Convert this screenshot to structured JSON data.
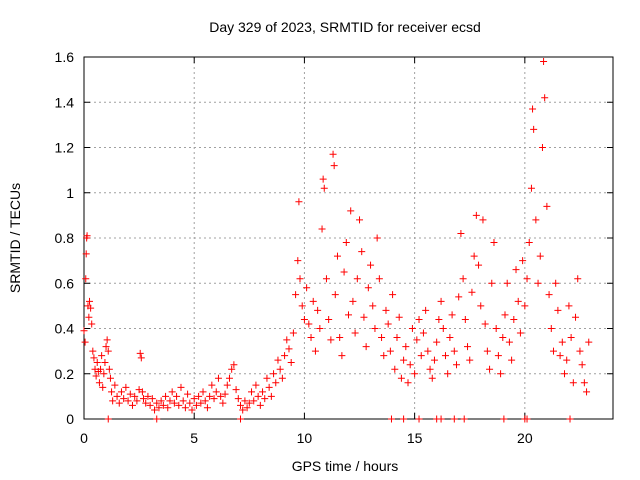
{
  "chart_data": {
    "type": "scatter",
    "title": "Day 329 of 2023, SRMTID for receiver ecsd",
    "xlabel": "GPS time / hours",
    "ylabel": "SRMTID / TECUs",
    "xlim": [
      0,
      24
    ],
    "ylim": [
      0,
      1.6
    ],
    "xticks": [
      "0",
      "5",
      "10",
      "15",
      "20"
    ],
    "yticks": [
      "0",
      "0.2",
      "0.4",
      "0.6",
      "0.8",
      "1",
      "1.2",
      "1.4",
      "1.6"
    ],
    "grid": true,
    "marker": "+",
    "series_color": "#ff0000",
    "series": [
      {
        "name": "SRMTID",
        "points": [
          [
            0.0,
            0.39
          ],
          [
            0.05,
            0.34
          ],
          [
            0.08,
            0.62
          ],
          [
            0.1,
            0.73
          ],
          [
            0.12,
            0.8
          ],
          [
            0.14,
            0.81
          ],
          [
            0.18,
            0.5
          ],
          [
            0.22,
            0.45
          ],
          [
            0.25,
            0.52
          ],
          [
            0.3,
            0.49
          ],
          [
            0.35,
            0.42
          ],
          [
            0.4,
            0.3
          ],
          [
            0.45,
            0.27
          ],
          [
            0.5,
            0.22
          ],
          [
            0.55,
            0.19
          ],
          [
            0.6,
            0.25
          ],
          [
            0.65,
            0.21
          ],
          [
            0.7,
            0.16
          ],
          [
            0.75,
            0.22
          ],
          [
            0.8,
            0.28
          ],
          [
            0.85,
            0.14
          ],
          [
            0.9,
            0.2
          ],
          [
            0.95,
            0.25
          ],
          [
            1.0,
            0.32
          ],
          [
            1.05,
            0.35
          ],
          [
            1.1,
            0.3
          ],
          [
            1.15,
            0.22
          ],
          [
            1.2,
            0.18
          ],
          [
            1.25,
            0.12
          ],
          [
            1.3,
            0.08
          ],
          [
            1.4,
            0.15
          ],
          [
            1.5,
            0.1
          ],
          [
            1.6,
            0.07
          ],
          [
            1.7,
            0.12
          ],
          [
            1.8,
            0.09
          ],
          [
            1.9,
            0.14
          ],
          [
            2.0,
            0.08
          ],
          [
            2.1,
            0.11
          ],
          [
            2.2,
            0.06
          ],
          [
            2.3,
            0.1
          ],
          [
            2.4,
            0.08
          ],
          [
            2.5,
            0.13
          ],
          [
            2.55,
            0.29
          ],
          [
            2.6,
            0.27
          ],
          [
            2.65,
            0.12
          ],
          [
            2.7,
            0.09
          ],
          [
            2.8,
            0.07
          ],
          [
            2.9,
            0.1
          ],
          [
            3.0,
            0.06
          ],
          [
            3.1,
            0.09
          ],
          [
            3.2,
            0.04
          ],
          [
            3.3,
            0.07
          ],
          [
            3.4,
            0.05
          ],
          [
            3.5,
            0.08
          ],
          [
            3.6,
            0.06
          ],
          [
            3.7,
            0.1
          ],
          [
            3.8,
            0.05
          ],
          [
            3.9,
            0.08
          ],
          [
            4.0,
            0.12
          ],
          [
            4.1,
            0.07
          ],
          [
            4.2,
            0.1
          ],
          [
            4.3,
            0.06
          ],
          [
            4.4,
            0.14
          ],
          [
            4.5,
            0.08
          ],
          [
            4.6,
            0.05
          ],
          [
            4.7,
            0.11
          ],
          [
            4.8,
            0.07
          ],
          [
            4.9,
            0.04
          ],
          [
            5.0,
            0.09
          ],
          [
            5.1,
            0.06
          ],
          [
            5.2,
            0.1
          ],
          [
            5.3,
            0.07
          ],
          [
            5.4,
            0.12
          ],
          [
            5.5,
            0.08
          ],
          [
            5.6,
            0.05
          ],
          [
            5.7,
            0.1
          ],
          [
            5.8,
            0.15
          ],
          [
            5.9,
            0.09
          ],
          [
            6.0,
            0.12
          ],
          [
            6.1,
            0.18
          ],
          [
            6.2,
            0.1
          ],
          [
            6.3,
            0.07
          ],
          [
            6.4,
            0.11
          ],
          [
            6.5,
            0.15
          ],
          [
            6.6,
            0.18
          ],
          [
            6.7,
            0.22
          ],
          [
            6.8,
            0.24
          ],
          [
            6.9,
            0.13
          ],
          [
            7.0,
            0.09
          ],
          [
            7.1,
            0.06
          ],
          [
            7.2,
            0.04
          ],
          [
            7.3,
            0.08
          ],
          [
            7.4,
            0.05
          ],
          [
            7.5,
            0.07
          ],
          [
            7.6,
            0.12
          ],
          [
            7.7,
            0.08
          ],
          [
            7.8,
            0.15
          ],
          [
            7.9,
            0.1
          ],
          [
            8.0,
            0.06
          ],
          [
            8.1,
            0.12
          ],
          [
            8.2,
            0.09
          ],
          [
            8.3,
            0.18
          ],
          [
            8.4,
            0.14
          ],
          [
            8.5,
            0.1
          ],
          [
            8.6,
            0.2
          ],
          [
            8.7,
            0.16
          ],
          [
            8.8,
            0.26
          ],
          [
            8.9,
            0.22
          ],
          [
            9.0,
            0.18
          ],
          [
            9.1,
            0.28
          ],
          [
            9.2,
            0.35
          ],
          [
            9.3,
            0.31
          ],
          [
            9.4,
            0.25
          ],
          [
            9.5,
            0.38
          ],
          [
            9.6,
            0.55
          ],
          [
            9.7,
            0.7
          ],
          [
            9.75,
            0.96
          ],
          [
            9.8,
            0.62
          ],
          [
            9.9,
            0.5
          ],
          [
            10.0,
            0.44
          ],
          [
            10.1,
            0.58
          ],
          [
            10.2,
            0.42
          ],
          [
            10.3,
            0.36
          ],
          [
            10.4,
            0.52
          ],
          [
            10.5,
            0.3
          ],
          [
            10.6,
            0.48
          ],
          [
            10.7,
            0.4
          ],
          [
            10.8,
            0.84
          ],
          [
            10.85,
            1.06
          ],
          [
            10.9,
            1.02
          ],
          [
            11.0,
            0.62
          ],
          [
            11.1,
            0.44
          ],
          [
            11.2,
            0.35
          ],
          [
            11.3,
            1.17
          ],
          [
            11.35,
            1.12
          ],
          [
            11.4,
            0.55
          ],
          [
            11.5,
            0.72
          ],
          [
            11.6,
            0.36
          ],
          [
            11.7,
            0.28
          ],
          [
            11.8,
            0.65
          ],
          [
            11.9,
            0.78
          ],
          [
            12.0,
            0.46
          ],
          [
            12.1,
            0.92
          ],
          [
            12.2,
            0.52
          ],
          [
            12.3,
            0.38
          ],
          [
            12.4,
            0.62
          ],
          [
            12.5,
            0.88
          ],
          [
            12.6,
            0.74
          ],
          [
            12.7,
            0.45
          ],
          [
            12.8,
            0.32
          ],
          [
            12.9,
            0.58
          ],
          [
            13.0,
            0.68
          ],
          [
            13.1,
            0.5
          ],
          [
            13.2,
            0.4
          ],
          [
            13.3,
            0.8
          ],
          [
            13.4,
            0.62
          ],
          [
            13.5,
            0.36
          ],
          [
            13.6,
            0.28
          ],
          [
            13.7,
            0.48
          ],
          [
            13.8,
            0.42
          ],
          [
            13.9,
            0.3
          ],
          [
            14.0,
            0.55
          ],
          [
            14.1,
            0.22
          ],
          [
            14.2,
            0.36
          ],
          [
            14.3,
            0.45
          ],
          [
            14.4,
            0.18
          ],
          [
            14.5,
            0.26
          ],
          [
            14.6,
            0.32
          ],
          [
            14.7,
            0.16
          ],
          [
            14.8,
            0.24
          ],
          [
            14.9,
            0.4
          ],
          [
            15.0,
            0.2
          ],
          [
            15.1,
            0.35
          ],
          [
            15.2,
            0.44
          ],
          [
            15.3,
            0.28
          ],
          [
            15.4,
            0.38
          ],
          [
            15.5,
            0.48
          ],
          [
            15.6,
            0.3
          ],
          [
            15.7,
            0.22
          ],
          [
            15.8,
            0.18
          ],
          [
            15.9,
            0.26
          ],
          [
            16.0,
            0.34
          ],
          [
            16.1,
            0.44
          ],
          [
            16.2,
            0.52
          ],
          [
            16.3,
            0.4
          ],
          [
            16.4,
            0.28
          ],
          [
            16.5,
            0.2
          ],
          [
            16.6,
            0.36
          ],
          [
            16.7,
            0.46
          ],
          [
            16.8,
            0.3
          ],
          [
            16.9,
            0.24
          ],
          [
            17.0,
            0.54
          ],
          [
            17.1,
            0.82
          ],
          [
            17.2,
            0.62
          ],
          [
            17.3,
            0.44
          ],
          [
            17.4,
            0.32
          ],
          [
            17.5,
            0.26
          ],
          [
            17.6,
            0.56
          ],
          [
            17.7,
            0.72
          ],
          [
            17.8,
            0.9
          ],
          [
            17.9,
            0.68
          ],
          [
            18.0,
            0.5
          ],
          [
            18.1,
            0.88
          ],
          [
            18.2,
            0.42
          ],
          [
            18.3,
            0.3
          ],
          [
            18.4,
            0.22
          ],
          [
            18.5,
            0.6
          ],
          [
            18.6,
            0.78
          ],
          [
            18.7,
            0.4
          ],
          [
            18.8,
            0.28
          ],
          [
            18.9,
            0.2
          ],
          [
            19.0,
            0.36
          ],
          [
            19.1,
            0.46
          ],
          [
            19.2,
            0.6
          ],
          [
            19.3,
            0.34
          ],
          [
            19.4,
            0.26
          ],
          [
            19.5,
            0.44
          ],
          [
            19.6,
            0.66
          ],
          [
            19.7,
            0.52
          ],
          [
            19.8,
            0.38
          ],
          [
            19.9,
            0.7
          ],
          [
            20.0,
            0.5
          ],
          [
            20.1,
            0.62
          ],
          [
            20.2,
            0.78
          ],
          [
            20.3,
            1.02
          ],
          [
            20.35,
            1.37
          ],
          [
            20.4,
            1.28
          ],
          [
            20.5,
            0.88
          ],
          [
            20.6,
            0.6
          ],
          [
            20.7,
            0.72
          ],
          [
            20.8,
            1.2
          ],
          [
            20.85,
            1.58
          ],
          [
            20.9,
            1.42
          ],
          [
            21.0,
            0.94
          ],
          [
            21.1,
            0.55
          ],
          [
            21.2,
            0.4
          ],
          [
            21.3,
            0.3
          ],
          [
            21.4,
            0.6
          ],
          [
            21.5,
            0.48
          ],
          [
            21.6,
            0.28
          ],
          [
            21.7,
            0.34
          ],
          [
            21.8,
            0.2
          ],
          [
            21.9,
            0.26
          ],
          [
            22.0,
            0.5
          ],
          [
            22.1,
            0.36
          ],
          [
            22.2,
            0.16
          ],
          [
            22.3,
            0.45
          ],
          [
            22.4,
            0.62
          ],
          [
            22.5,
            0.3
          ],
          [
            22.6,
            0.24
          ],
          [
            22.7,
            0.16
          ],
          [
            22.8,
            0.12
          ],
          [
            22.9,
            0.34
          ],
          [
            1.1,
            0.0
          ],
          [
            3.3,
            0.0
          ],
          [
            7.1,
            0.0
          ],
          [
            13.95,
            0.0
          ],
          [
            14.5,
            0.0
          ],
          [
            15.2,
            0.0
          ],
          [
            16.0,
            0.0
          ],
          [
            16.2,
            0.0
          ],
          [
            16.8,
            0.0
          ],
          [
            17.25,
            0.0
          ],
          [
            19.05,
            0.0
          ],
          [
            20.0,
            0.0
          ],
          [
            20.1,
            0.0
          ],
          [
            22.05,
            0.0
          ]
        ]
      }
    ]
  }
}
